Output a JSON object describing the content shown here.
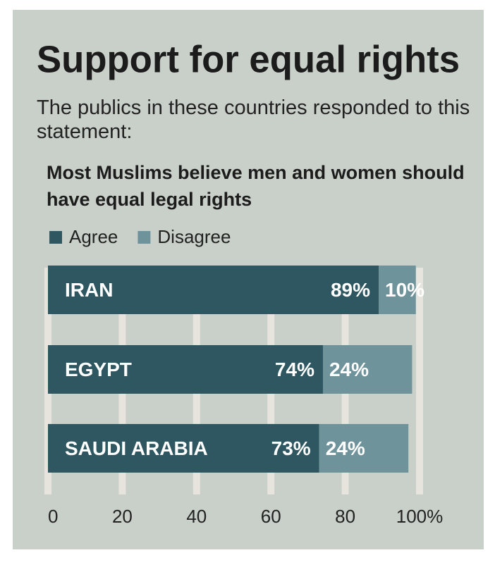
{
  "chart_data": {
    "type": "stacked-bar-horizontal",
    "title": "Support for equal rights",
    "subtitle": "The publics in these countries responded to this statement:",
    "statement": "Most Muslims believe men and women should have equal legal rights",
    "categories": [
      "IRAN",
      "EGYPT",
      "SAUDI ARABIA"
    ],
    "series": [
      {
        "name": "Agree",
        "color": "#2f5761",
        "values": [
          89,
          74,
          73
        ],
        "value_labels": [
          "89%",
          "74%",
          "73%"
        ]
      },
      {
        "name": "Disagree",
        "color": "#6f939a",
        "values": [
          10,
          24,
          24
        ],
        "value_labels": [
          "10%",
          "24%",
          "24%"
        ]
      }
    ],
    "xlim": [
      0,
      100
    ],
    "xticks": [
      0,
      20,
      40,
      60,
      80,
      {
        "value": 100,
        "label": "100%"
      }
    ],
    "grid": true
  }
}
